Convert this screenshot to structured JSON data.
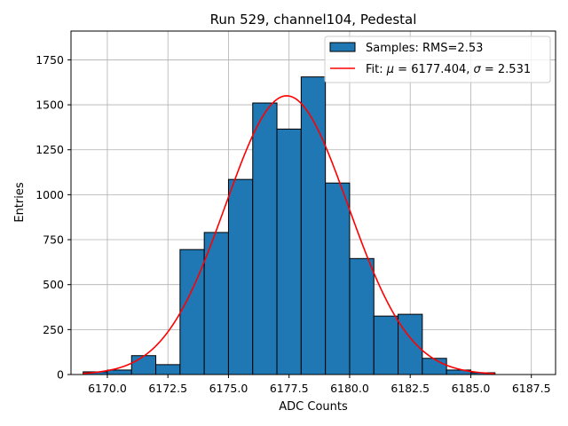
{
  "chart_data": {
    "type": "bar",
    "title": "Run 529, channel104, Pedestal",
    "xlabel": "ADC Counts",
    "ylabel": "Entries",
    "xlim": [
      6168.5,
      6188.5
    ],
    "ylim": [
      0,
      1910
    ],
    "grid": true,
    "legend_position": "top-right",
    "x_ticks": [
      6170.0,
      6172.5,
      6175.0,
      6177.5,
      6180.0,
      6182.5,
      6185.0,
      6187.5
    ],
    "x_tick_labels": [
      "6170.0",
      "6172.5",
      "6175.0",
      "6177.5",
      "6180.0",
      "6182.5",
      "6185.0",
      "6187.5"
    ],
    "y_ticks": [
      0,
      250,
      500,
      750,
      1000,
      1250,
      1500,
      1750
    ],
    "y_tick_labels": [
      "0",
      "250",
      "500",
      "750",
      "1000",
      "1250",
      "1500",
      "1750"
    ],
    "bar_color": "#1f77b4",
    "fit_color": "#ff0000",
    "bins": {
      "edges": [
        6169.0,
        6170.0,
        6171.0,
        6172.0,
        6173.0,
        6174.0,
        6175.0,
        6176.0,
        6177.0,
        6178.0,
        6179.0,
        6180.0,
        6181.0,
        6182.0,
        6183.0,
        6184.0,
        6185.0,
        6186.0
      ],
      "counts": [
        15,
        25,
        105,
        55,
        695,
        790,
        1085,
        1510,
        1365,
        1655,
        1065,
        645,
        325,
        335,
        90,
        25,
        10
      ]
    },
    "fit": {
      "mu": 6177.404,
      "sigma": 2.531,
      "amplitude": 1550
    },
    "legend": [
      {
        "type": "patch",
        "label": "Samples: RMS=2.53"
      },
      {
        "type": "line",
        "label_prefix": "Fit: ",
        "mu_symbol": "μ",
        "mu_text": " = 6177.404, ",
        "sigma_symbol": "σ",
        "sigma_text": " = 2.531"
      }
    ]
  }
}
